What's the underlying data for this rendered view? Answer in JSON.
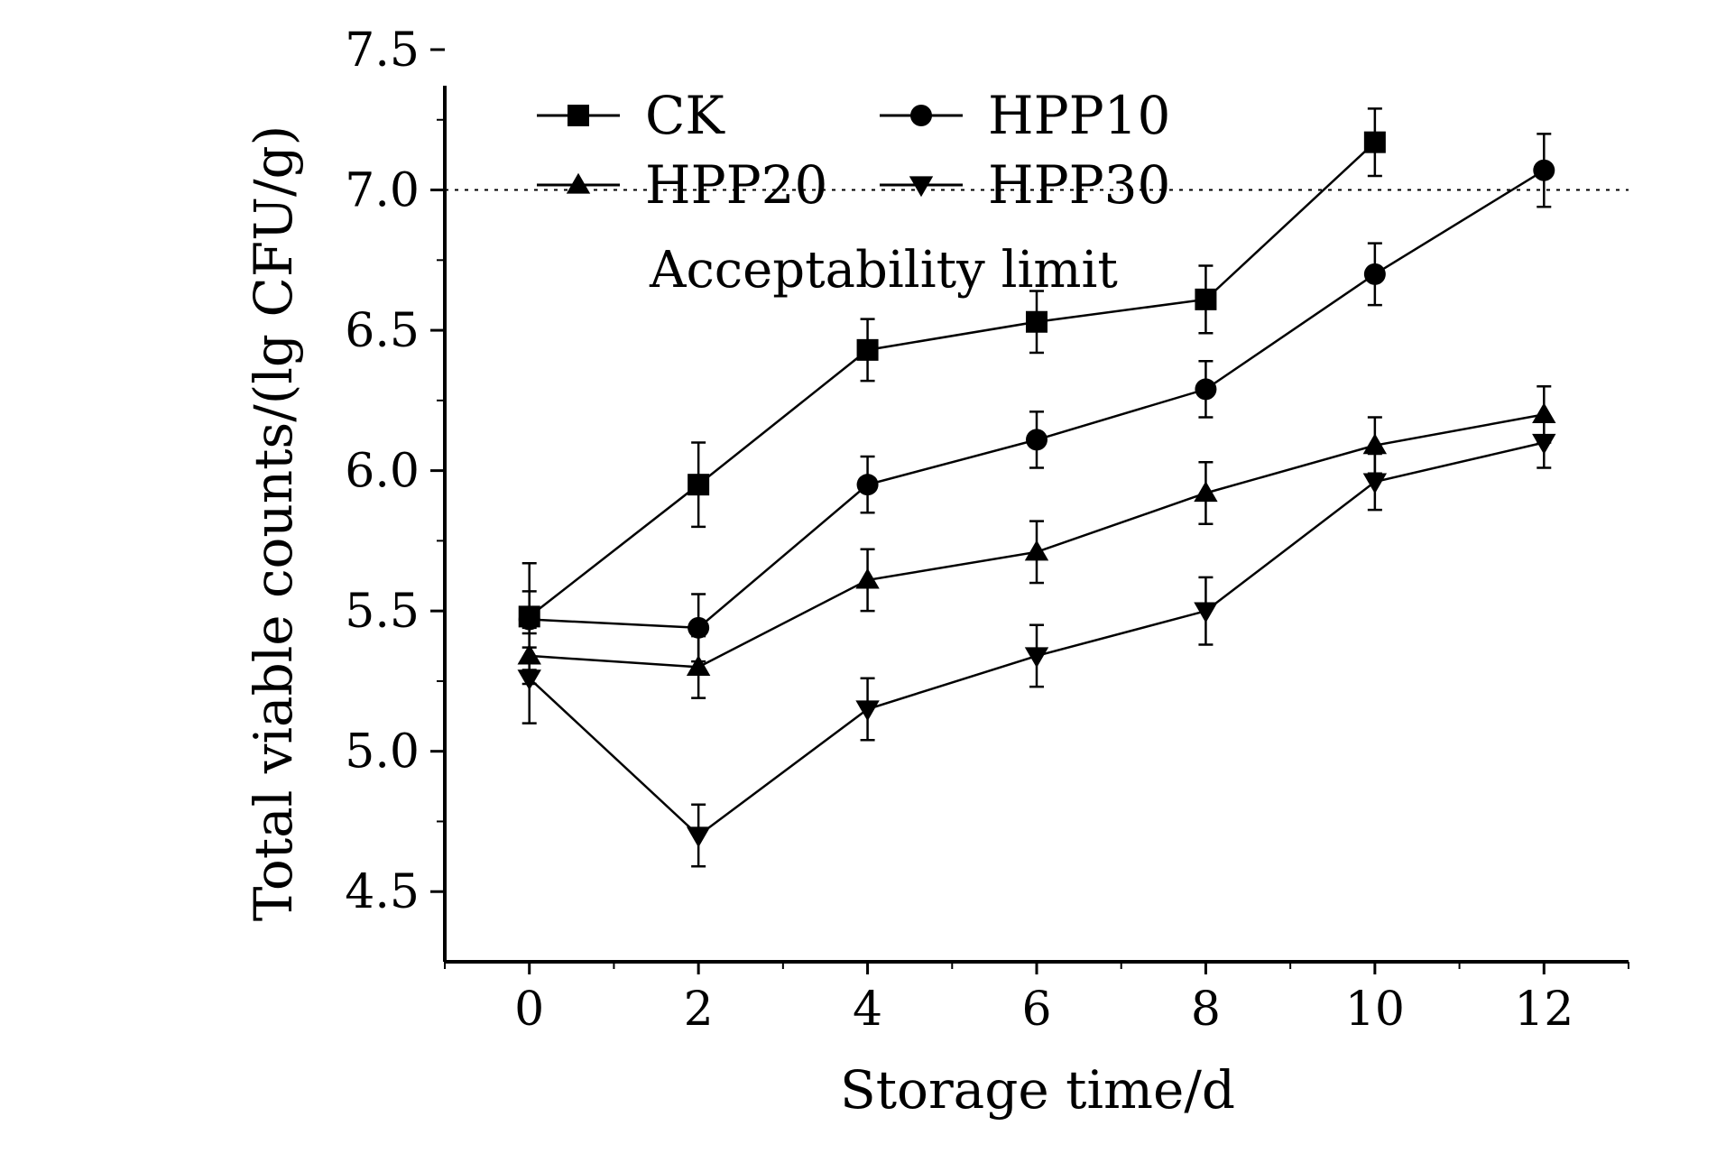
{
  "colors": {
    "ink": "#000000",
    "background": "#ffffff"
  },
  "chart_data": {
    "type": "line",
    "title": "",
    "xlabel": "Storage time/d",
    "ylabel": "Total viable counts/(lg CFU/g)",
    "xlim": [
      -1,
      13
    ],
    "ylim": [
      4.25,
      7.5
    ],
    "xticks": [
      0,
      2,
      4,
      6,
      8,
      10,
      12
    ],
    "yticks": [
      4.5,
      5.0,
      5.5,
      6.0,
      6.5,
      7.0,
      7.5
    ],
    "xtick_labels": [
      "0",
      "2",
      "4",
      "6",
      "8",
      "10",
      "12"
    ],
    "ytick_labels": [
      "4.5",
      "5.0",
      "5.5",
      "6.0",
      "6.5",
      "7.0",
      "7.5"
    ],
    "grid": false,
    "legend_position": "top-left",
    "reference_line": {
      "y": 7.0,
      "style": "dotted",
      "label": "Acceptability limit"
    },
    "series": [
      {
        "name": "CK",
        "marker": "square",
        "x": [
          0,
          2,
          4,
          6,
          8,
          10
        ],
        "values": [
          5.48,
          5.95,
          6.43,
          6.53,
          6.61,
          7.17
        ],
        "errors": [
          0.19,
          0.15,
          0.11,
          0.11,
          0.12,
          0.12
        ]
      },
      {
        "name": "HPP10",
        "marker": "circle",
        "x": [
          0,
          2,
          4,
          6,
          8,
          10,
          12
        ],
        "values": [
          5.47,
          5.44,
          5.95,
          6.11,
          6.29,
          6.7,
          7.07
        ],
        "errors": [
          0.1,
          0.12,
          0.1,
          0.1,
          0.1,
          0.11,
          0.13
        ]
      },
      {
        "name": "HPP20",
        "marker": "triangle-up",
        "x": [
          0,
          2,
          4,
          6,
          8,
          10,
          12
        ],
        "values": [
          5.34,
          5.3,
          5.61,
          5.71,
          5.92,
          6.09,
          6.2
        ],
        "errors": [
          0.1,
          0.11,
          0.11,
          0.11,
          0.11,
          0.1,
          0.1
        ]
      },
      {
        "name": "HPP30",
        "marker": "triangle-down",
        "x": [
          0,
          2,
          4,
          6,
          8,
          10,
          12
        ],
        "values": [
          5.26,
          4.7,
          5.15,
          5.34,
          5.5,
          5.96,
          6.1
        ],
        "errors": [
          0.16,
          0.11,
          0.11,
          0.11,
          0.12,
          0.1,
          0.09
        ]
      }
    ]
  }
}
